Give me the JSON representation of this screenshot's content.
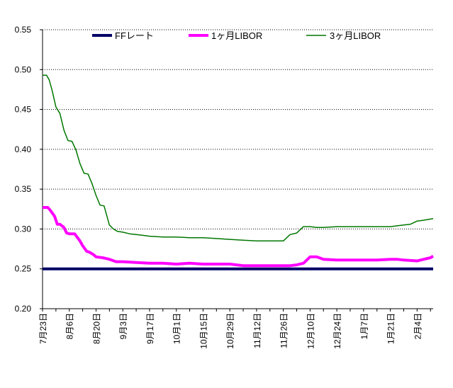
{
  "chart_data": {
    "type": "line",
    "title": "",
    "xlabel": "",
    "ylabel": "",
    "ylim": [
      0.2,
      0.55
    ],
    "y_ticks": [
      "0.20",
      "0.25",
      "0.30",
      "0.35",
      "0.40",
      "0.45",
      "0.50",
      "0.55"
    ],
    "x_ticks": [
      "7月23日",
      "8月6日",
      "8月20日",
      "9月3日",
      "9月17日",
      "10月1日",
      "10月15日",
      "10月29日",
      "11月12日",
      "11月26日",
      "12月10日",
      "12月24日",
      "1月7日",
      "1月21日",
      "2月4日"
    ],
    "x_range": [
      0,
      29.2
    ],
    "grid": "horizontal dotted",
    "legend_position": "top",
    "series": [
      {
        "name": "FFレート",
        "color": "#000066",
        "width": 4,
        "x": [
          0,
          29.2
        ],
        "values": [
          0.25,
          0.25
        ]
      },
      {
        "name": "1ヶ月LIBOR",
        "color": "#ff00ff",
        "width": 4,
        "x": [
          0,
          0.4,
          0.6,
          0.9,
          1.1,
          1.3,
          1.6,
          1.8,
          2.0,
          2.4,
          2.8,
          3.0,
          3.3,
          3.5,
          3.8,
          4.0,
          4.5,
          5.0,
          5.5,
          6.0,
          7.0,
          8.0,
          9.0,
          10.0,
          11.0,
          12.0,
          13.0,
          14.0,
          15.0,
          16.0,
          17.0,
          18.0,
          18.5,
          19.0,
          19.5,
          20.0,
          20.5,
          21.0,
          22.0,
          23.0,
          24.0,
          25.0,
          26.0,
          26.5,
          27.0,
          28.0,
          28.5,
          29.0,
          29.2
        ],
        "values": [
          0.327,
          0.327,
          0.323,
          0.316,
          0.306,
          0.306,
          0.302,
          0.295,
          0.294,
          0.294,
          0.285,
          0.279,
          0.272,
          0.271,
          0.268,
          0.265,
          0.264,
          0.262,
          0.259,
          0.259,
          0.258,
          0.257,
          0.257,
          0.256,
          0.257,
          0.256,
          0.256,
          0.256,
          0.254,
          0.254,
          0.254,
          0.254,
          0.254,
          0.255,
          0.257,
          0.265,
          0.265,
          0.262,
          0.261,
          0.261,
          0.261,
          0.261,
          0.262,
          0.262,
          0.261,
          0.26,
          0.262,
          0.264,
          0.266
        ]
      },
      {
        "name": "3ヶ月LIBOR",
        "color": "#007700",
        "width": 1.5,
        "x": [
          0,
          0.3,
          0.5,
          0.7,
          1.0,
          1.3,
          1.6,
          1.9,
          2.2,
          2.5,
          2.8,
          3.1,
          3.4,
          3.7,
          4.0,
          4.3,
          4.6,
          5.0,
          5.3,
          5.6,
          6.0,
          6.5,
          7.0,
          7.5,
          8.0,
          9.0,
          10.0,
          11.0,
          12.0,
          13.0,
          14.0,
          15.0,
          16.0,
          17.0,
          17.8,
          18.0,
          18.5,
          19.0,
          19.5,
          20.0,
          20.5,
          21.0,
          22.0,
          23.0,
          24.0,
          25.0,
          26.0,
          27.0,
          27.5,
          28.0,
          28.5,
          29.2
        ],
        "values": [
          0.493,
          0.493,
          0.487,
          0.475,
          0.453,
          0.445,
          0.424,
          0.411,
          0.41,
          0.399,
          0.382,
          0.37,
          0.369,
          0.357,
          0.342,
          0.33,
          0.329,
          0.305,
          0.3,
          0.297,
          0.296,
          0.294,
          0.293,
          0.292,
          0.291,
          0.29,
          0.29,
          0.289,
          0.289,
          0.288,
          0.287,
          0.286,
          0.285,
          0.285,
          0.285,
          0.285,
          0.293,
          0.295,
          0.303,
          0.303,
          0.302,
          0.302,
          0.303,
          0.303,
          0.303,
          0.303,
          0.303,
          0.305,
          0.306,
          0.31,
          0.311,
          0.313
        ]
      }
    ]
  }
}
